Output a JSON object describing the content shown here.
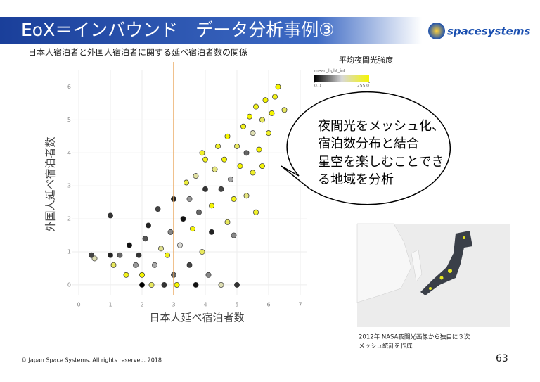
{
  "header": {
    "title": "EoX＝インバウンド　データ分析事例③",
    "logo": "spacesystems"
  },
  "chart_data": {
    "type": "scatter",
    "title": "日本人宿泊者と外国人宿泊者に関する延べ宿泊者数の関係",
    "x_label": "日本人延べ宿泊者数",
    "y_label": "外国人延べ宿泊者数",
    "xlim": [
      -0.2,
      7.2
    ],
    "ylim": [
      -0.3,
      6.5
    ],
    "xticks": [
      0,
      1,
      2,
      3,
      4,
      5,
      6,
      7
    ],
    "yticks": [
      0,
      1,
      2,
      3,
      4,
      5,
      6
    ],
    "grid": true,
    "reference_x": 3,
    "reference_color": "#e8a050",
    "colorbar": {
      "title": "平均夜間光強度",
      "label": "mean_light_int",
      "lim": [
        0,
        255
      ],
      "ticks": [
        {
          "value": 0,
          "label": "0.0"
        },
        {
          "value": 255,
          "label": "255.0"
        }
      ],
      "colors": [
        "#000000",
        "#d8d8d8",
        "#f5f500"
      ]
    },
    "x": [
      0.4,
      0.5,
      1.0,
      1.0,
      1.1,
      1.3,
      1.5,
      1.6,
      1.8,
      1.9,
      2.0,
      2.0,
      2.1,
      2.2,
      2.3,
      2.4,
      2.5,
      2.6,
      2.7,
      2.8,
      2.9,
      3.0,
      3.0,
      3.1,
      3.2,
      3.3,
      3.4,
      3.5,
      3.5,
      3.6,
      3.7,
      3.7,
      3.8,
      3.9,
      4.0,
      4.0,
      4.1,
      4.2,
      4.2,
      4.3,
      4.4,
      4.5,
      4.5,
      4.6,
      4.7,
      4.7,
      4.8,
      4.9,
      5.0,
      5.0,
      5.1,
      5.2,
      5.3,
      5.3,
      5.4,
      5.5,
      5.5,
      5.6,
      5.7,
      5.8,
      5.8,
      5.9,
      6.0,
      6.1,
      6.2,
      6.3,
      5.6,
      4.9,
      3.9,
      6.5
    ],
    "values": [
      0.9,
      0.8,
      0.9,
      2.1,
      0.6,
      0.9,
      0.3,
      1.2,
      0.6,
      0.9,
      0,
      0.3,
      1.4,
      1.8,
      0,
      0.6,
      2.3,
      1.1,
      0,
      0.9,
      1.6,
      2.6,
      0.3,
      0,
      1.2,
      2.0,
      3.1,
      0.6,
      2.6,
      1.7,
      0,
      3.3,
      2.2,
      1.0,
      2.9,
      3.8,
      0.3,
      2.4,
      1.6,
      3.5,
      4.2,
      0,
      2.9,
      3.8,
      1.9,
      4.5,
      3.2,
      2.6,
      4.2,
      0,
      3.6,
      4.8,
      2.7,
      4.0,
      5.1,
      3.4,
      4.6,
      5.4,
      4.1,
      5.0,
      3.6,
      5.6,
      4.6,
      5.2,
      5.7,
      6.0,
      2.2,
      1.5,
      4.0,
      5.3
    ],
    "intensity": [
      40,
      150,
      20,
      30,
      200,
      60,
      240,
      10,
      90,
      30,
      0,
      255,
      50,
      20,
      200,
      100,
      40,
      170,
      30,
      240,
      80,
      20,
      60,
      255,
      130,
      10,
      220,
      40,
      90,
      250,
      10,
      160,
      60,
      200,
      30,
      240,
      80,
      250,
      20,
      180,
      230,
      150,
      40,
      250,
      200,
      255,
      100,
      240,
      200,
      30,
      255,
      240,
      180,
      60,
      255,
      230,
      150,
      240,
      255,
      200,
      250,
      255,
      230,
      255,
      240,
      255,
      230,
      80,
      230,
      200
    ]
  },
  "callout": {
    "lines": [
      "夜間光をメッシュ化、",
      "宿泊数分布と結合",
      "星空を楽しむことでき",
      "る地域を分析"
    ]
  },
  "map_caption": {
    "lines": [
      "2012年 NASA夜間光画像から独自に３次",
      "メッシュ統計を作成"
    ]
  },
  "footer": {
    "copyright": "© Japan Space Systems. All rights reserved. 2018",
    "page": "63"
  }
}
